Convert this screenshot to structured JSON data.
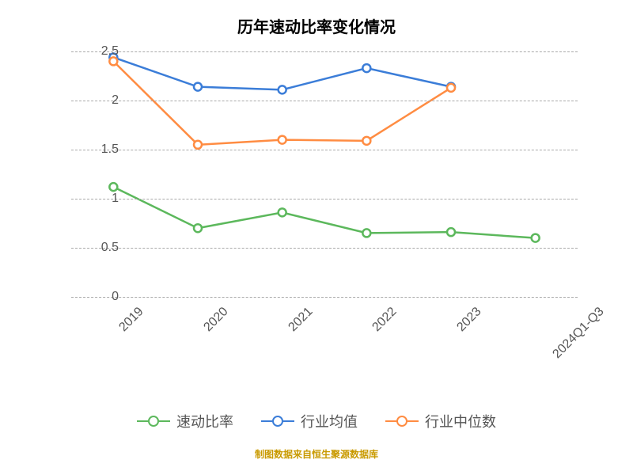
{
  "chart": {
    "type": "line",
    "title": "历年速动比率变化情况",
    "title_fontsize": 20,
    "background_color": "#ffffff",
    "grid_color": "#aaaaaa",
    "axis_label_color": "#555555",
    "axis_label_fontsize": 16,
    "ylim": [
      0,
      2.5
    ],
    "ytick_step": 0.5,
    "yticks": [
      "0",
      "0.5",
      "1",
      "1.5",
      "2",
      "2.5"
    ],
    "categories": [
      "2019",
      "2020",
      "2021",
      "2022",
      "2023",
      "2024Q1-Q3"
    ],
    "x_label_rotation": -45,
    "line_width": 2.5,
    "marker_size": 5,
    "marker_fill": "#ffffff",
    "series": [
      {
        "name": "速动比率",
        "label": "速动比率",
        "color": "#5cb85c",
        "values": [
          1.12,
          0.7,
          0.86,
          0.65,
          0.66,
          0.6
        ]
      },
      {
        "name": "行业均值",
        "label": "行业均值",
        "color": "#3b7dd8",
        "values": [
          2.44,
          2.14,
          2.11,
          2.33,
          2.14,
          null
        ]
      },
      {
        "name": "行业中位数",
        "label": "行业中位数",
        "color": "#ff8c42",
        "values": [
          2.4,
          1.55,
          1.6,
          1.59,
          2.13,
          null
        ]
      }
    ],
    "footer": {
      "text": "制图数据来自恒生聚源数据库",
      "color": "#c99a00",
      "fontsize": 12
    }
  }
}
